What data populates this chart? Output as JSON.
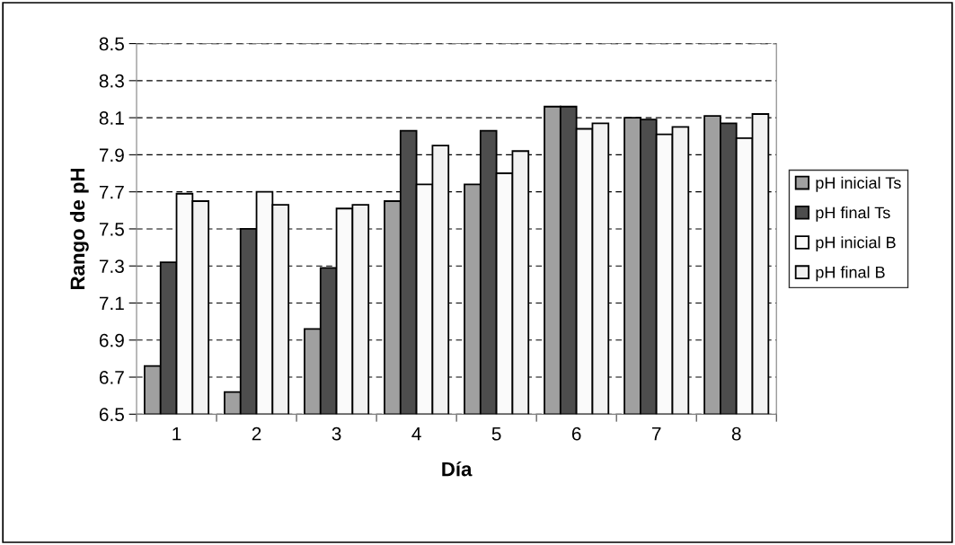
{
  "chart_data": {
    "type": "bar",
    "xlabel": "Día",
    "ylabel": "Rango de pH",
    "categories": [
      "1",
      "2",
      "3",
      "4",
      "5",
      "6",
      "7",
      "8"
    ],
    "series": [
      {
        "name": "pH inicial Ts",
        "color": "#a0a0a0",
        "values": [
          6.76,
          6.62,
          6.96,
          7.65,
          7.74,
          8.16,
          8.1,
          8.11
        ]
      },
      {
        "name": "pH final Ts",
        "color": "#4d4d4d",
        "values": [
          7.32,
          7.5,
          7.29,
          8.03,
          8.03,
          8.16,
          8.09,
          8.07
        ]
      },
      {
        "name": "pH inicial B",
        "color": "#fafafa",
        "values": [
          7.69,
          7.7,
          7.61,
          7.74,
          7.8,
          8.04,
          8.01,
          7.99
        ]
      },
      {
        "name": "pH final B",
        "color": "#f2f2f2",
        "values": [
          7.65,
          7.63,
          7.63,
          7.95,
          7.92,
          8.07,
          8.05,
          8.12
        ]
      }
    ],
    "ylim": [
      6.5,
      8.5
    ],
    "yticks": [
      6.5,
      6.7,
      6.9,
      7.1,
      7.3,
      7.5,
      7.7,
      7.9,
      8.1,
      8.3,
      8.5
    ],
    "grid": "y",
    "legend": "right"
  }
}
